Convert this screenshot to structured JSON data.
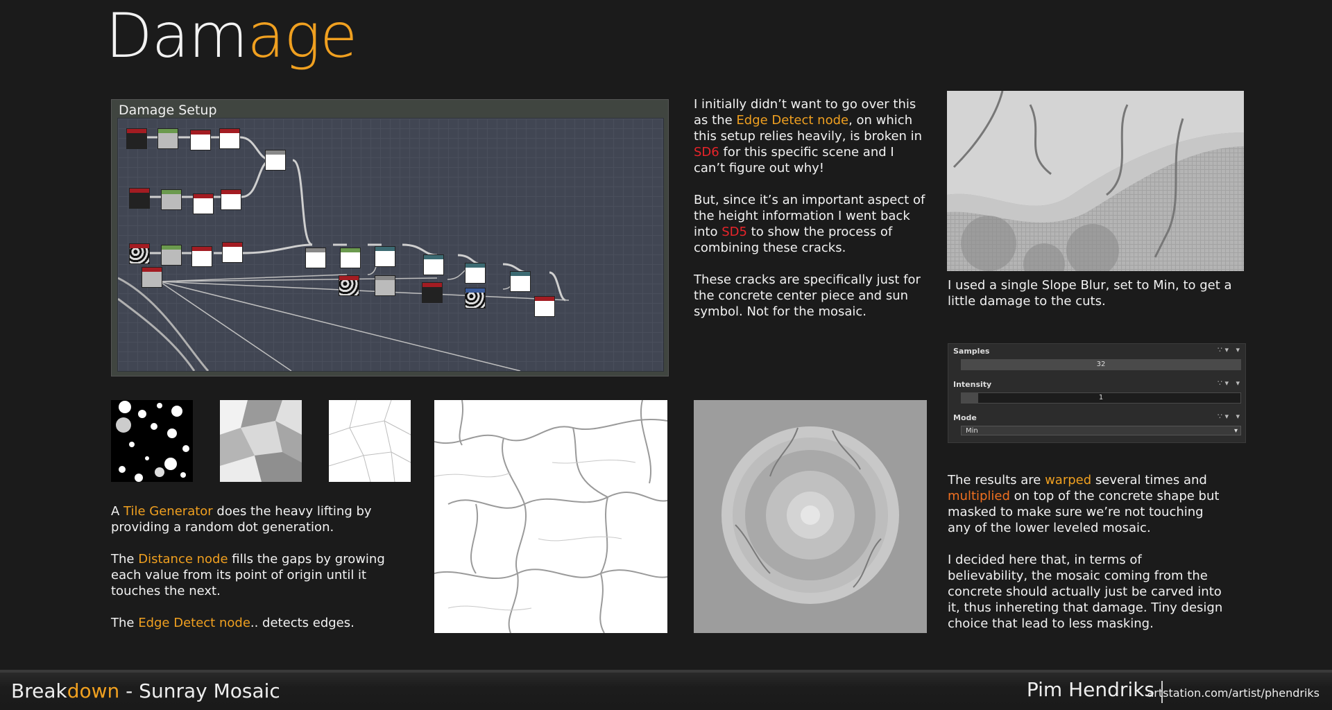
{
  "title": {
    "part1": "Dam",
    "part2": "age"
  },
  "graph": {
    "title": "Damage Setup"
  },
  "texts": {
    "intro": {
      "p1_a": "I initially didn’t want to go over this as the ",
      "p1_hl": "Edge Detect node",
      "p1_b": ", on which this setup relies heavily, is broken in ",
      "p1_red": "SD6",
      "p1_c": " for this specific scene and I can’t figure out why!",
      "p2_a": "But, since it’s an important aspect of the height information I went back into ",
      "p2_red": "SD5",
      "p2_b": " to show the process of combining these cracks.",
      "p3": "These cracks are specifically just for the concrete center piece and sun symbol. Not for the mosaic."
    },
    "slope_caption": "I used a single Slope Blur, set to Min, to get a little damage to the cuts.",
    "tile": {
      "p1_a": "A ",
      "p1_hl": "Tile Generator",
      "p1_b": " does the heavy lifting by providing a random dot generation.",
      "p2_a": "The ",
      "p2_hl": "Distance node",
      "p2_b": " fills the gaps by growing each value from its point of origin until it touches the next.",
      "p3_a": "The ",
      "p3_hl": "Edge Detect node",
      "p3_b": ".. detects edges."
    },
    "results": {
      "p1_a": "The results are ",
      "p1_hl1": "warped",
      "p1_b": " several times and ",
      "p1_hl2": "multiplied",
      "p1_c": " on top of the concrete shape but masked to make sure we’re not touching any of the lower leveled mosaic.",
      "p2": "I decided here that, in terms of believability, the mosaic coming from the concrete should actually just be carved into it, thus inhereting that damage. Tiny design choice that lead to less masking."
    }
  },
  "props": {
    "samples": {
      "label": "Samples",
      "value": "32",
      "fill": 1.0
    },
    "intensity": {
      "label": "Intensity",
      "value": "1",
      "fill": 0.06
    },
    "mode": {
      "label": "Mode",
      "value": "Min"
    }
  },
  "footer": {
    "breakdown_a": "Break",
    "breakdown_b": "down",
    "breakdown_c": " - Sunray Mosaic",
    "name": "Pim Hendriks",
    "url": "artstation.com/artist/phendriks"
  },
  "colors": {
    "accent": "#f0a020",
    "red": "#e8242a",
    "background": "#1b1b1b"
  }
}
